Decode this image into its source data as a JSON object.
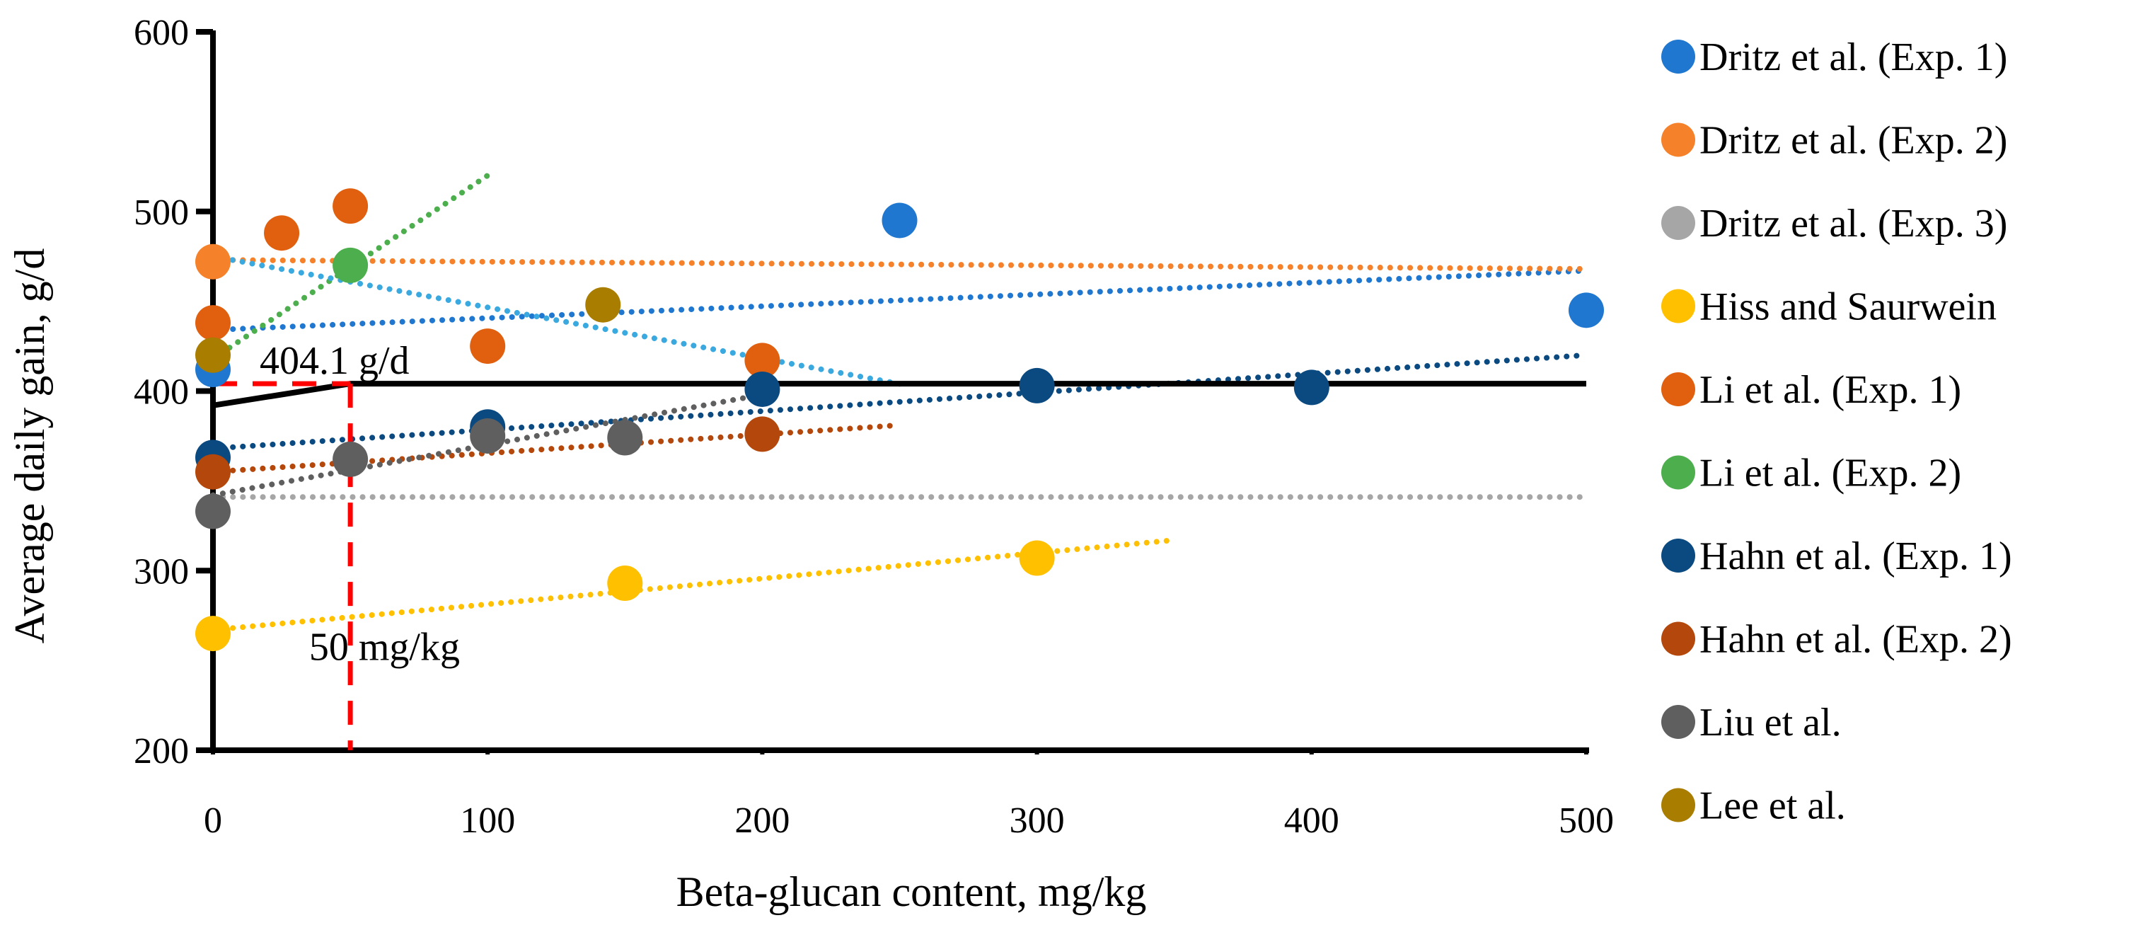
{
  "chart_data": {
    "type": "scatter",
    "title": "",
    "xlabel": "Beta-glucan content, mg/kg",
    "ylabel": "Average daily gain, g/d",
    "xlim": [
      0,
      500
    ],
    "ylim": [
      200,
      600
    ],
    "xticks": [
      "0",
      "100",
      "200",
      "300",
      "400",
      "500"
    ],
    "yticks": [
      "200",
      "300",
      "400",
      "500",
      "600"
    ],
    "grid": false,
    "legend_position": "right",
    "series": [
      {
        "name": "Dritz et al.  (Exp. 1)",
        "color": "#1f77d0",
        "points": [
          [
            0,
            412
          ],
          [
            250,
            495
          ],
          [
            500,
            445
          ]
        ],
        "trend": [
          [
            0,
            434
          ],
          [
            500,
            467
          ]
        ]
      },
      {
        "name": "Dritz et al.  (Exp. 2)",
        "color": "#f5822a",
        "points": [
          [
            0,
            472
          ]
        ],
        "trend": [
          [
            0,
            473
          ],
          [
            500,
            468
          ]
        ]
      },
      {
        "name": "Dritz et al.  (Exp. 3)",
        "color": "#a6a6a6",
        "points": [],
        "trend": [
          [
            0,
            341
          ],
          [
            500,
            341
          ]
        ]
      },
      {
        "name": "Hiss and Saurwein",
        "color": "#ffc000",
        "points": [
          [
            0,
            265
          ],
          [
            150,
            293
          ],
          [
            300,
            307
          ]
        ],
        "trend": [
          [
            0,
            267
          ],
          [
            350,
            317
          ]
        ]
      },
      {
        "name": "Li et al.  (Exp. 1)",
        "color": "#e06010",
        "points": [
          [
            0,
            438
          ],
          [
            25,
            488
          ],
          [
            50,
            503
          ],
          [
            100,
            425
          ],
          [
            200,
            417
          ]
        ],
        "trend": []
      },
      {
        "name": "Li et al.  (Exp. 2)",
        "color": "#4cae4c",
        "points": [
          [
            50,
            470
          ]
        ],
        "trend": [
          [
            0,
            418
          ],
          [
            100,
            520
          ]
        ]
      },
      {
        "name": "Hahn et al.  (Exp. 1)",
        "color": "#0b4a80",
        "points": [
          [
            0,
            363
          ],
          [
            100,
            380
          ],
          [
            200,
            401
          ],
          [
            300,
            403
          ],
          [
            400,
            402
          ]
        ],
        "trend": [
          [
            0,
            368
          ],
          [
            500,
            420
          ]
        ]
      },
      {
        "name": "Hahn et al.  (Exp. 2)",
        "color": "#b4470b",
        "points": [
          [
            0,
            355
          ],
          [
            200,
            376
          ]
        ],
        "trend": [
          [
            0,
            355
          ],
          [
            250,
            381
          ]
        ]
      },
      {
        "name": "Liu et al.",
        "color": "#5f5f5f",
        "points": [
          [
            0,
            333
          ],
          [
            50,
            362
          ],
          [
            100,
            375
          ],
          [
            150,
            374
          ]
        ],
        "trend": [
          [
            0,
            342
          ],
          [
            200,
            398
          ]
        ]
      },
      {
        "name": "Lee et al.",
        "color": "#a87d00",
        "points": [
          [
            0,
            420
          ],
          [
            142,
            448
          ]
        ],
        "trend": []
      }
    ],
    "extra_trend": {
      "color": "#3aa9e0",
      "points": [
        [
          0,
          475
        ],
        [
          250,
          404
        ]
      ]
    },
    "broken_line_model": {
      "color": "#000000",
      "points": [
        [
          0,
          392
        ],
        [
          50,
          404.1
        ],
        [
          500,
          404.1
        ]
      ]
    },
    "breakpoint_guides": {
      "color": "#ff0000",
      "x": 50,
      "y": 404.1
    },
    "annotations": [
      {
        "text": "404.1 g/d",
        "x": 17,
        "y": 404.1
      },
      {
        "text": "50 mg/kg",
        "x": 35,
        "y": 270
      }
    ]
  }
}
